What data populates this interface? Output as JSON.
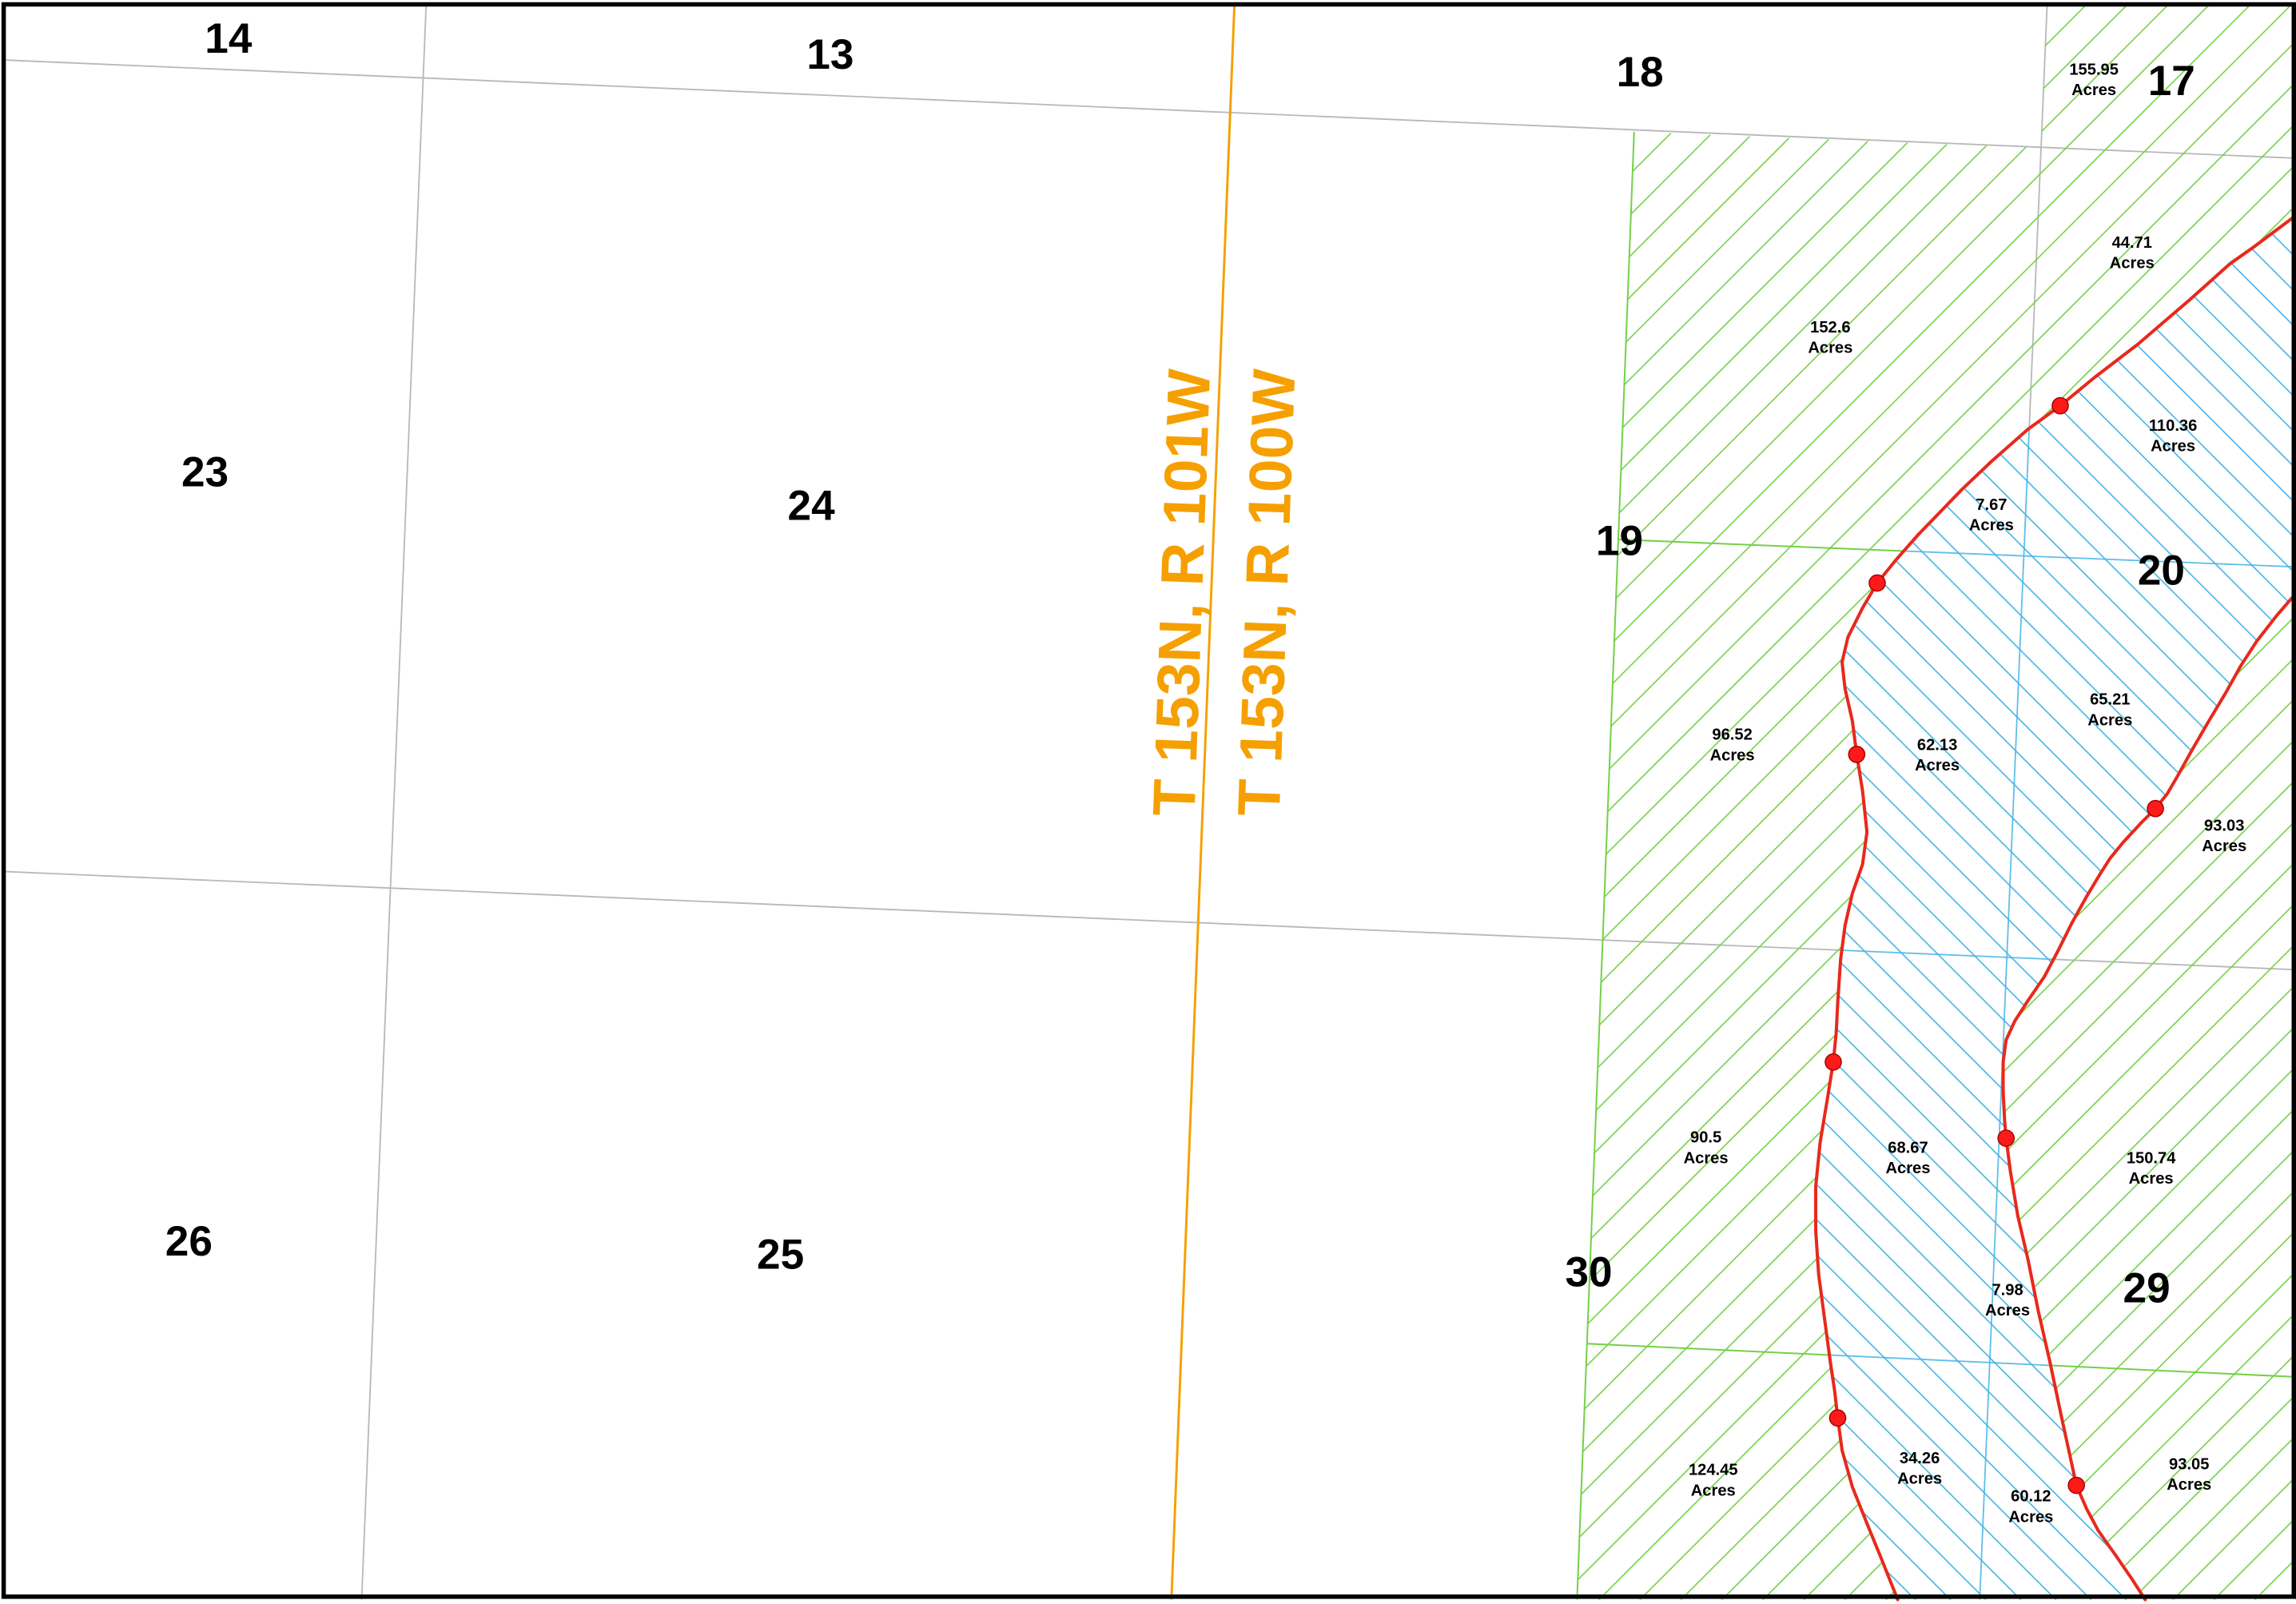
{
  "map": {
    "township_labels": {
      "west": "T 153N, R 101W",
      "east": "T 153N, R 100W"
    },
    "sections": [
      "14",
      "13",
      "18",
      "17",
      "23",
      "24",
      "19",
      "20",
      "26",
      "25",
      "30",
      "29"
    ],
    "parcels": [
      {
        "acres": "155.95",
        "unit": "Acres"
      },
      {
        "acres": "44.71",
        "unit": "Acres"
      },
      {
        "acres": "152.6",
        "unit": "Acres"
      },
      {
        "acres": "110.36",
        "unit": "Acres"
      },
      {
        "acres": "7.67",
        "unit": "Acres"
      },
      {
        "acres": "65.21",
        "unit": "Acres"
      },
      {
        "acres": "96.52",
        "unit": "Acres"
      },
      {
        "acres": "62.13",
        "unit": "Acres"
      },
      {
        "acres": "93.03",
        "unit": "Acres"
      },
      {
        "acres": "90.5",
        "unit": "Acres"
      },
      {
        "acres": "68.67",
        "unit": "Acres"
      },
      {
        "acres": "150.74",
        "unit": "Acres"
      },
      {
        "acres": "7.98",
        "unit": "Acres"
      },
      {
        "acres": "124.45",
        "unit": "Acres"
      },
      {
        "acres": "34.26",
        "unit": "Acres"
      },
      {
        "acres": "60.12",
        "unit": "Acres"
      },
      {
        "acres": "93.05",
        "unit": "Acres"
      }
    ]
  },
  "colors": {
    "township_line": "#f5a000",
    "boundary_line": "#e8291c",
    "marker": "#ff1a1a",
    "green_hatch": "#74d148",
    "blue_hatch": "#45b4e6",
    "section_line": "#b8b8b8",
    "frame": "#000000"
  }
}
